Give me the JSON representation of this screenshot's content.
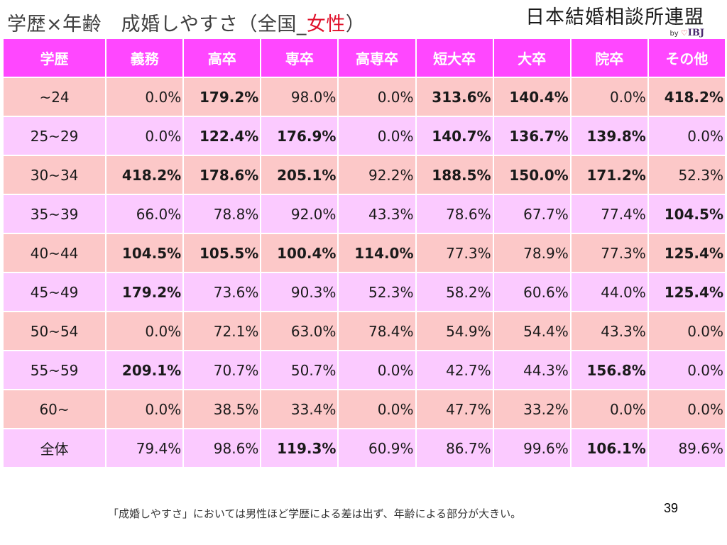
{
  "title": {
    "prefix": "学歴×年齢　成婚しやすさ（全国_",
    "accent": "女性",
    "suffix": "）"
  },
  "logo": {
    "main": "日本結婚相談所連盟",
    "by": "by",
    "heart": "♡",
    "brand": "IBJ"
  },
  "colors": {
    "header_bg": "#ff47ff",
    "row_pink": "#fcc8c8",
    "row_lavender": "#fbcaff",
    "title_accent": "#e0102a"
  },
  "table": {
    "headers": [
      "学歴",
      "義務",
      "高卒",
      "専卒",
      "高専卒",
      "短大卒",
      "大卒",
      "院卒",
      "その他"
    ],
    "rows": [
      {
        "label": "~24",
        "cells": [
          {
            "v": "0.0%",
            "b": false
          },
          {
            "v": "179.2%",
            "b": true
          },
          {
            "v": "98.0%",
            "b": false
          },
          {
            "v": "0.0%",
            "b": false
          },
          {
            "v": "313.6%",
            "b": true
          },
          {
            "v": "140.4%",
            "b": true
          },
          {
            "v": "0.0%",
            "b": false
          },
          {
            "v": "418.2%",
            "b": true
          }
        ]
      },
      {
        "label": "25~29",
        "cells": [
          {
            "v": "0.0%",
            "b": false
          },
          {
            "v": "122.4%",
            "b": true
          },
          {
            "v": "176.9%",
            "b": true
          },
          {
            "v": "0.0%",
            "b": false
          },
          {
            "v": "140.7%",
            "b": true
          },
          {
            "v": "136.7%",
            "b": true
          },
          {
            "v": "139.8%",
            "b": true
          },
          {
            "v": "0.0%",
            "b": false
          }
        ]
      },
      {
        "label": "30~34",
        "cells": [
          {
            "v": "418.2%",
            "b": true
          },
          {
            "v": "178.6%",
            "b": true
          },
          {
            "v": "205.1%",
            "b": true
          },
          {
            "v": "92.2%",
            "b": false
          },
          {
            "v": "188.5%",
            "b": true
          },
          {
            "v": "150.0%",
            "b": true
          },
          {
            "v": "171.2%",
            "b": true
          },
          {
            "v": "52.3%",
            "b": false
          }
        ]
      },
      {
        "label": "35~39",
        "cells": [
          {
            "v": "66.0%",
            "b": false
          },
          {
            "v": "78.8%",
            "b": false
          },
          {
            "v": "92.0%",
            "b": false
          },
          {
            "v": "43.3%",
            "b": false
          },
          {
            "v": "78.6%",
            "b": false
          },
          {
            "v": "67.7%",
            "b": false
          },
          {
            "v": "77.4%",
            "b": false
          },
          {
            "v": "104.5%",
            "b": true
          }
        ]
      },
      {
        "label": "40~44",
        "cells": [
          {
            "v": "104.5%",
            "b": true
          },
          {
            "v": "105.5%",
            "b": true
          },
          {
            "v": "100.4%",
            "b": true
          },
          {
            "v": "114.0%",
            "b": true
          },
          {
            "v": "77.3%",
            "b": false
          },
          {
            "v": "78.9%",
            "b": false
          },
          {
            "v": "77.3%",
            "b": false
          },
          {
            "v": "125.4%",
            "b": true
          }
        ]
      },
      {
        "label": "45~49",
        "cells": [
          {
            "v": "179.2%",
            "b": true
          },
          {
            "v": "73.6%",
            "b": false
          },
          {
            "v": "90.3%",
            "b": false
          },
          {
            "v": "52.3%",
            "b": false
          },
          {
            "v": "58.2%",
            "b": false
          },
          {
            "v": "60.6%",
            "b": false
          },
          {
            "v": "44.0%",
            "b": false
          },
          {
            "v": "125.4%",
            "b": true
          }
        ]
      },
      {
        "label": "50~54",
        "cells": [
          {
            "v": "0.0%",
            "b": false
          },
          {
            "v": "72.1%",
            "b": false
          },
          {
            "v": "63.0%",
            "b": false
          },
          {
            "v": "78.4%",
            "b": false
          },
          {
            "v": "54.9%",
            "b": false
          },
          {
            "v": "54.4%",
            "b": false
          },
          {
            "v": "43.3%",
            "b": false
          },
          {
            "v": "0.0%",
            "b": false
          }
        ]
      },
      {
        "label": "55~59",
        "cells": [
          {
            "v": "209.1%",
            "b": true
          },
          {
            "v": "70.7%",
            "b": false
          },
          {
            "v": "50.7%",
            "b": false
          },
          {
            "v": "0.0%",
            "b": false
          },
          {
            "v": "42.7%",
            "b": false
          },
          {
            "v": "44.3%",
            "b": false
          },
          {
            "v": "156.8%",
            "b": true
          },
          {
            "v": "0.0%",
            "b": false
          }
        ]
      },
      {
        "label": "60~",
        "cells": [
          {
            "v": "0.0%",
            "b": false
          },
          {
            "v": "38.5%",
            "b": false
          },
          {
            "v": "33.4%",
            "b": false
          },
          {
            "v": "0.0%",
            "b": false
          },
          {
            "v": "47.7%",
            "b": false
          },
          {
            "v": "33.2%",
            "b": false
          },
          {
            "v": "0.0%",
            "b": false
          },
          {
            "v": "0.0%",
            "b": false
          }
        ]
      },
      {
        "label": "全体",
        "cells": [
          {
            "v": "79.4%",
            "b": false
          },
          {
            "v": "98.6%",
            "b": false
          },
          {
            "v": "119.3%",
            "b": true
          },
          {
            "v": "60.9%",
            "b": false
          },
          {
            "v": "86.7%",
            "b": false
          },
          {
            "v": "99.6%",
            "b": false
          },
          {
            "v": "106.1%",
            "b": true
          },
          {
            "v": "89.6%",
            "b": false
          }
        ]
      }
    ]
  },
  "footnote": "「成婚しやすさ」においては男性ほど学歴による差は出ず、年齢による部分が大きい。",
  "page_number": "39"
}
